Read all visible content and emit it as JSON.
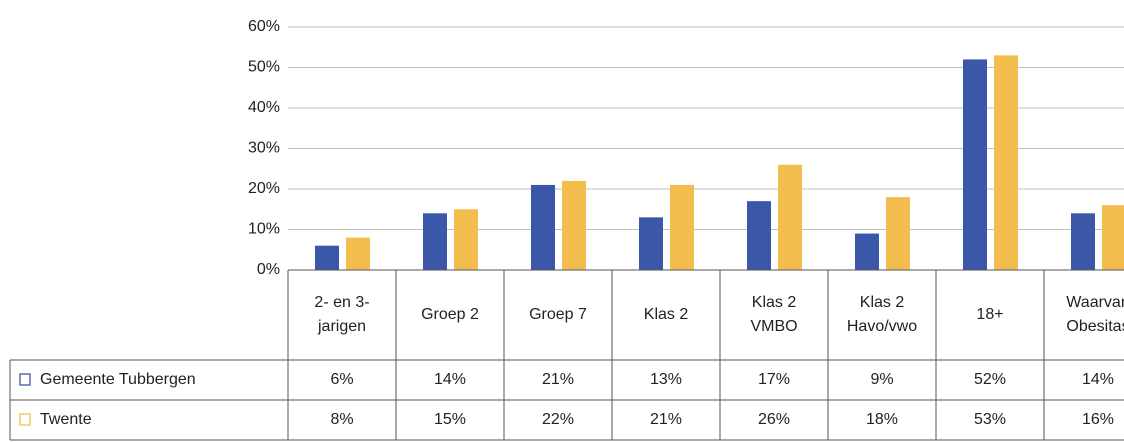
{
  "chart_data": {
    "type": "bar",
    "categories": [
      "2- en 3-\njarigen",
      "Groep 2",
      "Groep 7",
      "Klas 2",
      "Klas 2\nVMBO",
      "Klas 2\nHavo/vwo",
      "18+",
      "Waarvan\nObesitas"
    ],
    "series": [
      {
        "name": "Gemeente Tubbergen",
        "color": "#3b57a8",
        "values": [
          6,
          14,
          21,
          13,
          17,
          9,
          52,
          14
        ],
        "value_labels": [
          "6%",
          "14%",
          "21%",
          "13%",
          "17%",
          "9%",
          "52%",
          "14%"
        ]
      },
      {
        "name": "Twente",
        "color": "#f3bd4e",
        "values": [
          8,
          15,
          22,
          21,
          26,
          18,
          53,
          16
        ],
        "value_labels": [
          "8%",
          "15%",
          "22%",
          "21%",
          "26%",
          "18%",
          "53%",
          "16%"
        ]
      }
    ],
    "ylim": [
      0,
      60
    ],
    "yticks": [
      {
        "value": 0,
        "label": "0%"
      },
      {
        "value": 10,
        "label": "10%"
      },
      {
        "value": 20,
        "label": "20%"
      },
      {
        "value": 30,
        "label": "30%"
      },
      {
        "value": 40,
        "label": "40%"
      },
      {
        "value": 50,
        "label": "50%"
      },
      {
        "value": 60,
        "label": "60%"
      }
    ],
    "grid": true
  }
}
